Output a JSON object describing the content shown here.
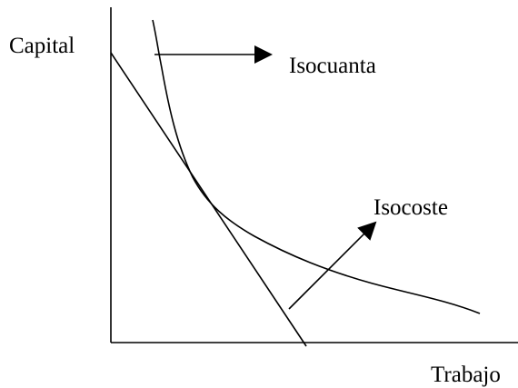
{
  "labels": {
    "y_axis": "Capital",
    "x_axis": "Trabajo",
    "isoquant": "Isocuanta",
    "isocost": "Isocoste"
  }
}
